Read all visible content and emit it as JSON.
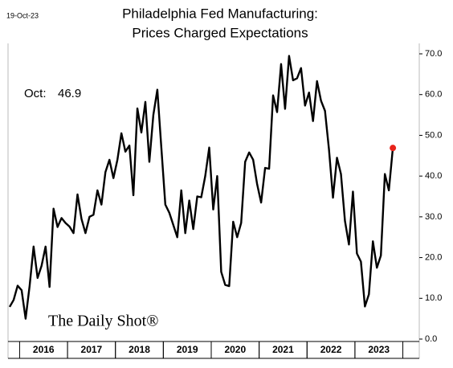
{
  "chart_data": {
    "type": "line",
    "date": "19-Oct-23",
    "title": [
      "Philadelphia Fed Manufacturing:",
      "Prices Charged Expectations"
    ],
    "annotation": {
      "label": "Oct:",
      "value": 46.9
    },
    "logo": "The Daily Shot®",
    "categories": [
      null,
      null,
      null,
      null,
      null,
      null,
      null,
      null,
      null,
      "2016",
      null,
      null,
      null,
      null,
      null,
      null,
      null,
      null,
      null,
      null,
      null,
      "2017",
      null,
      null,
      null,
      null,
      null,
      null,
      null,
      null,
      null,
      null,
      null,
      "2018",
      null,
      null,
      null,
      null,
      null,
      null,
      null,
      null,
      null,
      null,
      null,
      "2019",
      null,
      null,
      null,
      null,
      null,
      null,
      null,
      null,
      null,
      null,
      null,
      "2020",
      null,
      null,
      null,
      null,
      null,
      null,
      null,
      null,
      null,
      null,
      null,
      "2021",
      null,
      null,
      null,
      null,
      null,
      null,
      null,
      null,
      null,
      null,
      null,
      "2022",
      null,
      null,
      null,
      null,
      null,
      null,
      null,
      null,
      null,
      null,
      null,
      "2023",
      null,
      null,
      null
    ],
    "series": [
      {
        "color": "#000000",
        "last_point_color": "#e8231a",
        "values": [
          7.9,
          9.6,
          13.1,
          12,
          5,
          13,
          22.7,
          15,
          18,
          22.7,
          12.8,
          32,
          27.5,
          29.7,
          28.5,
          27.6,
          26,
          35.5,
          29.5,
          26,
          30,
          30.5,
          36.5,
          33,
          41,
          44,
          39.5,
          44,
          50.5,
          46,
          47.5,
          35.3,
          56.6,
          50.7,
          58.2,
          43.5,
          55,
          61.2,
          47,
          33,
          31,
          28,
          25,
          36.5,
          26,
          34,
          27,
          35,
          34.8,
          40,
          47,
          31.8,
          40,
          16.5,
          13.3,
          13,
          28.8,
          25,
          28.5,
          43.5,
          45.8,
          44,
          38,
          33.5,
          42,
          41.8,
          59.8,
          55.7,
          67.5,
          56.5,
          69.5,
          63.5,
          64,
          66.5,
          57.3,
          60.5,
          53.5,
          63.3,
          58.5,
          56,
          46.5,
          34.7,
          44.5,
          40.5,
          29,
          23.2,
          36.2,
          21,
          19,
          8,
          11,
          24,
          17.5,
          20.5,
          40.5,
          36.5,
          46.9
        ]
      }
    ],
    "ylim": [
      0,
      70
    ],
    "yticks": [
      {
        "value": 0,
        "label": "0.0"
      },
      {
        "value": 10,
        "label": "10.0"
      },
      {
        "value": 20,
        "label": "20.0"
      },
      {
        "value": 30,
        "label": "30.0"
      },
      {
        "value": 40,
        "label": "40.0"
      },
      {
        "value": 50,
        "label": "50.0"
      },
      {
        "value": 60,
        "label": "60.0"
      },
      {
        "value": 70,
        "label": "70.0"
      }
    ],
    "grid": false
  }
}
